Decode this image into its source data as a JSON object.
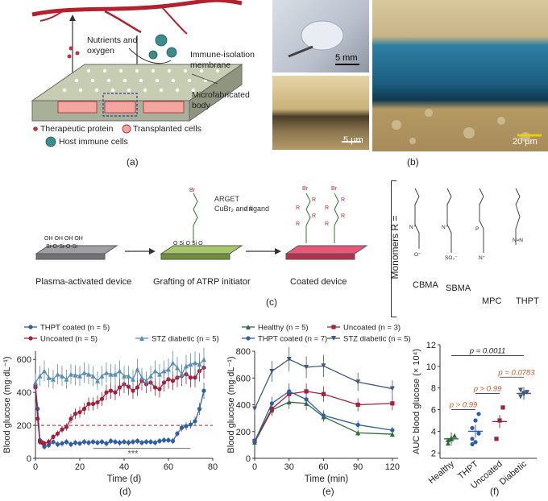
{
  "panel_labels": {
    "a": "(a)",
    "b": "(b)",
    "c": "(c)",
    "d": "(d)",
    "e": "(e)",
    "f": "(f)"
  },
  "panel_a": {
    "nutrients": "Nutrients and oxygen",
    "membrane": "Immune-isolation membrane",
    "body": "Microfabricated body",
    "legend": [
      "Therapeutic protein",
      "Transplanted cells",
      "Host immune cells"
    ]
  },
  "panel_b": {
    "scale_top": "5 mm",
    "scale_bottom": "5 μm",
    "scale_right": "20 μm"
  },
  "panel_c": {
    "step1": "Plasma-activated device",
    "step2": "Grafting of ATRP initiator",
    "step3": "Coated device",
    "reaction_line1": "ARGET",
    "reaction_line2": "CuBr₂ and ligand",
    "monomers_title": "Monomers R =",
    "monomers": [
      "CBMA",
      "SBMA",
      "MPC",
      "THPT"
    ]
  },
  "chart_data": [
    {
      "id": "d",
      "type": "line",
      "xlabel": "Time (d)",
      "ylabel": "Blood glucose (mg·dL⁻¹)",
      "xlim": [
        0,
        80
      ],
      "ylim": [
        0,
        650
      ],
      "xticks": [
        0,
        20,
        40,
        60,
        80
      ],
      "yticks": [
        0,
        200,
        400,
        600
      ],
      "threshold": 200,
      "annotation": "***",
      "series": [
        {
          "name": "THPT coated (n = 5)",
          "color": "#2f5ea6",
          "marker": "circle",
          "x": [
            0,
            1,
            2,
            3,
            4,
            6,
            8,
            10,
            12,
            14,
            16,
            18,
            20,
            22,
            24,
            26,
            28,
            30,
            32,
            34,
            36,
            38,
            40,
            42,
            44,
            46,
            48,
            50,
            52,
            54,
            56,
            58,
            60,
            62,
            64,
            66,
            68,
            70,
            72,
            74,
            76
          ],
          "y": [
            440,
            300,
            110,
            95,
            70,
            80,
            100,
            85,
            90,
            100,
            85,
            95,
            90,
            100,
            95,
            100,
            95,
            100,
            90,
            105,
            100,
            95,
            100,
            95,
            100,
            105,
            95,
            100,
            100,
            95,
            105,
            110,
            110,
            105,
            150,
            185,
            195,
            205,
            225,
            300,
            410
          ]
        },
        {
          "name": "Uncoated (n = 5)",
          "color": "#a3203a",
          "marker": "circle",
          "x": [
            0,
            1,
            2,
            3,
            4,
            6,
            8,
            10,
            12,
            14,
            16,
            18,
            20,
            22,
            24,
            26,
            28,
            30,
            32,
            34,
            36,
            38,
            40,
            42,
            44,
            46,
            48,
            50,
            52,
            54,
            56,
            58,
            60,
            62,
            64,
            66,
            68,
            70,
            72,
            74,
            76
          ],
          "y": [
            430,
            240,
            100,
            95,
            90,
            100,
            130,
            150,
            175,
            190,
            240,
            270,
            280,
            300,
            330,
            330,
            340,
            360,
            400,
            410,
            400,
            430,
            450,
            435,
            410,
            430,
            470,
            450,
            460,
            430,
            420,
            460,
            480,
            470,
            490,
            500,
            510,
            490,
            490,
            530,
            550
          ]
        },
        {
          "name": "STZ diabetic (n = 5)",
          "color": "#5b8db5",
          "marker": "triangle",
          "x": [
            0,
            2,
            4,
            6,
            8,
            10,
            12,
            14,
            16,
            18,
            20,
            22,
            24,
            26,
            28,
            30,
            32,
            34,
            36,
            38,
            40,
            42,
            44,
            46,
            48,
            50,
            52,
            54,
            56,
            58,
            60,
            62,
            64,
            66,
            68,
            70,
            72,
            74,
            76
          ],
          "y": [
            460,
            500,
            530,
            490,
            480,
            510,
            500,
            480,
            510,
            505,
            500,
            520,
            510,
            500,
            470,
            500,
            520,
            510,
            510,
            530,
            500,
            500,
            480,
            540,
            490,
            470,
            500,
            530,
            510,
            530,
            540,
            580,
            550,
            510,
            560,
            570,
            580,
            570,
            600
          ]
        }
      ]
    },
    {
      "id": "e",
      "type": "line",
      "xlabel": "Time (min)",
      "ylabel": "Blood glucose (mg·dL⁻¹)",
      "xlim": [
        0,
        125
      ],
      "ylim": [
        0,
        800
      ],
      "xticks": [
        0,
        30,
        60,
        90,
        120
      ],
      "yticks": [
        0,
        200,
        400,
        600,
        800
      ],
      "series": [
        {
          "name": "Healthy (n = 5)",
          "color": "#2e6b3a",
          "marker": "triangle-up",
          "x": [
            0,
            15,
            30,
            45,
            60,
            90,
            120
          ],
          "y": [
            120,
            360,
            420,
            410,
            310,
            190,
            180
          ]
        },
        {
          "name": "Uncoated (n = 3)",
          "color": "#a3203a",
          "marker": "square",
          "x": [
            0,
            15,
            30,
            45,
            60,
            90,
            120
          ],
          "y": [
            130,
            370,
            480,
            500,
            480,
            400,
            410
          ]
        },
        {
          "name": "THPT coated (n = 7)",
          "color": "#2f5ea6",
          "marker": "circle",
          "x": [
            0,
            15,
            30,
            45,
            60,
            90,
            120
          ],
          "y": [
            125,
            410,
            500,
            440,
            320,
            250,
            210
          ]
        },
        {
          "name": "STZ diabetic (n = 5)",
          "color": "#45597a",
          "marker": "triangle-down",
          "x": [
            0,
            15,
            30,
            45,
            60,
            90,
            120
          ],
          "y": [
            370,
            650,
            740,
            680,
            690,
            570,
            520
          ]
        }
      ]
    },
    {
      "id": "f",
      "type": "scatter",
      "ylabel": "AUC blood glucose (× 10⁴)",
      "ylim": [
        1.5,
        12
      ],
      "yticks": [
        2,
        4,
        6,
        8,
        10,
        12
      ],
      "categories": [
        "Healthy",
        "THPT",
        "Uncoated",
        "Diabetic"
      ],
      "colors": [
        "#2e6b3a",
        "#2f5ea6",
        "#a3203a",
        "#45597a"
      ],
      "points": [
        [
          3.2,
          3.4,
          3.6,
          2.9,
          3.3
        ],
        [
          2.8,
          3.0,
          3.8,
          4.3,
          5.0,
          5.6,
          3.3
        ],
        [
          3.3,
          5.0,
          6.2
        ],
        [
          7.2,
          7.4,
          7.6,
          7.8,
          7.5
        ]
      ],
      "means": [
        3.3,
        4.0,
        4.9,
        7.5
      ],
      "annotations": [
        {
          "text": "p = 0.0011",
          "color": "#222"
        },
        {
          "text": "p = 0.0783",
          "color": "#d4582a"
        },
        {
          "text": "p > 0.99",
          "color": "#d4582a"
        },
        {
          "text": "p > 0.99",
          "color": "#d4582a"
        }
      ]
    }
  ]
}
